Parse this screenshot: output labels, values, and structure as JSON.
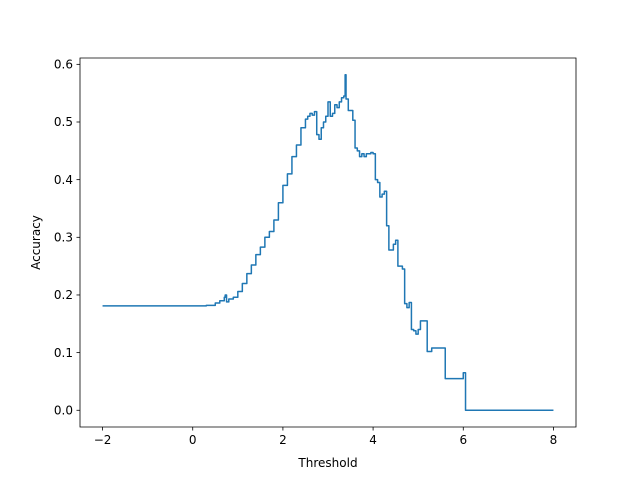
{
  "chart_data": {
    "type": "line",
    "title": "",
    "xlabel": "Threshold",
    "ylabel": "Accuracy",
    "xlim": [
      -2.5,
      8.5
    ],
    "ylim": [
      -0.029,
      0.611
    ],
    "xticks": [
      -2,
      0,
      2,
      4,
      6,
      8
    ],
    "xtick_labels": [
      "−2",
      "0",
      "2",
      "4",
      "6",
      "8"
    ],
    "yticks": [
      0.0,
      0.1,
      0.2,
      0.3,
      0.4,
      0.5,
      0.6
    ],
    "ytick_labels": [
      "0.0",
      "0.1",
      "0.2",
      "0.3",
      "0.4",
      "0.5",
      "0.6"
    ],
    "grid": false,
    "legend": "none",
    "series": [
      {
        "color": "#1f77b4",
        "x": [
          -2.0,
          0.0,
          0.3,
          0.5,
          0.6,
          0.7,
          0.72,
          0.75,
          0.8,
          0.9,
          1.0,
          1.1,
          1.2,
          1.3,
          1.4,
          1.5,
          1.6,
          1.7,
          1.8,
          1.9,
          2.0,
          2.1,
          2.2,
          2.3,
          2.4,
          2.5,
          2.55,
          2.6,
          2.65,
          2.7,
          2.75,
          2.8,
          2.85,
          2.9,
          2.95,
          3.0,
          3.05,
          3.1,
          3.15,
          3.2,
          3.25,
          3.3,
          3.35,
          3.38,
          3.4,
          3.45,
          3.5,
          3.55,
          3.6,
          3.65,
          3.7,
          3.75,
          3.8,
          3.85,
          3.9,
          3.95,
          4.0,
          4.05,
          4.1,
          4.15,
          4.2,
          4.25,
          4.3,
          4.35,
          4.4,
          4.45,
          4.5,
          4.55,
          4.6,
          4.65,
          4.7,
          4.75,
          4.8,
          4.85,
          4.9,
          4.95,
          5.0,
          5.05,
          5.1,
          5.15,
          5.2,
          5.3,
          5.35,
          5.4,
          5.5,
          5.6,
          5.7,
          5.8,
          5.9,
          6.0,
          6.05,
          6.1,
          6.5,
          7.0,
          8.0
        ],
        "y": [
          0.181,
          0.181,
          0.182,
          0.186,
          0.19,
          0.196,
          0.2,
          0.188,
          0.193,
          0.196,
          0.206,
          0.22,
          0.237,
          0.252,
          0.27,
          0.283,
          0.3,
          0.31,
          0.33,
          0.36,
          0.39,
          0.41,
          0.44,
          0.46,
          0.49,
          0.505,
          0.51,
          0.515,
          0.512,
          0.518,
          0.478,
          0.47,
          0.49,
          0.5,
          0.51,
          0.535,
          0.51,
          0.515,
          0.53,
          0.525,
          0.535,
          0.542,
          0.545,
          0.582,
          0.54,
          0.52,
          0.52,
          0.503,
          0.455,
          0.45,
          0.44,
          0.445,
          0.44,
          0.445,
          0.445,
          0.447,
          0.445,
          0.4,
          0.395,
          0.37,
          0.375,
          0.38,
          0.32,
          0.278,
          0.278,
          0.288,
          0.295,
          0.25,
          0.25,
          0.245,
          0.185,
          0.178,
          0.187,
          0.14,
          0.138,
          0.132,
          0.14,
          0.155,
          0.155,
          0.155,
          0.102,
          0.108,
          0.108,
          0.108,
          0.108,
          0.055,
          0.055,
          0.055,
          0.055,
          0.065,
          0.0,
          0.0,
          0.0,
          0.0,
          0.0
        ]
      }
    ]
  }
}
